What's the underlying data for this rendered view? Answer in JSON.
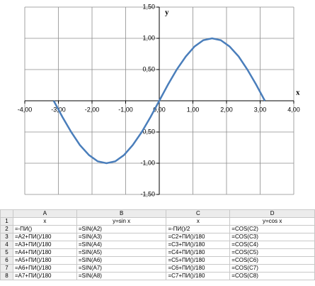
{
  "chart_data": {
    "type": "line",
    "x_label": "x",
    "y_label": "y",
    "x": [
      -3.14,
      -2.88,
      -2.62,
      -2.36,
      -2.09,
      -1.83,
      -1.57,
      -1.31,
      -1.05,
      -0.79,
      -0.52,
      -0.26,
      0,
      0.26,
      0.52,
      0.79,
      1.05,
      1.31,
      1.57,
      1.83,
      2.09,
      2.36,
      2.62,
      2.88,
      3.14
    ],
    "series": [
      {
        "color": "#4a7ebb",
        "values": [
          0,
          -0.26,
          -0.5,
          -0.71,
          -0.87,
          -0.97,
          -1,
          -0.97,
          -0.87,
          -0.71,
          -0.5,
          -0.26,
          0,
          0.26,
          0.5,
          0.71,
          0.87,
          0.97,
          1,
          0.97,
          0.87,
          0.71,
          0.5,
          0.26,
          0
        ]
      }
    ],
    "xlim": [
      -4,
      4
    ],
    "xticks": [
      {
        "value": -4,
        "label": "-4,00"
      },
      {
        "value": -3,
        "label": "-3,00"
      },
      {
        "value": -2,
        "label": "-2,00"
      },
      {
        "value": -1,
        "label": "-1,00"
      },
      {
        "value": 0,
        "label": "0,00"
      },
      {
        "value": 1,
        "label": "1,00"
      },
      {
        "value": 2,
        "label": "2,00"
      },
      {
        "value": 3,
        "label": "3,00"
      },
      {
        "value": 4,
        "label": "4,00"
      }
    ],
    "ylim": [
      -1.5,
      1.5
    ],
    "yticks": [
      {
        "value": -1.5,
        "label": "-1,50"
      },
      {
        "value": -1,
        "label": "-1,00"
      },
      {
        "value": -0.5,
        "label": "-0,50"
      },
      {
        "value": 0.5,
        "label": "0,50"
      },
      {
        "value": 1,
        "label": "1,00"
      },
      {
        "value": 1.5,
        "label": "1,50"
      }
    ],
    "grid": true
  },
  "table": {
    "columns": [
      "A",
      "B",
      "C",
      "D"
    ],
    "rows": [
      [
        "1",
        "x",
        "y=sin x",
        "x",
        "y=cos x"
      ],
      [
        "2",
        "=-ПИ()",
        "=SIN(A2)",
        "=-ПИ()/2",
        "=COS(C2)"
      ],
      [
        "3",
        "=A2+ПИ()/180",
        "=SIN(A3)",
        "=C2+ПИ()/180",
        "=COS(C3)"
      ],
      [
        "4",
        "=A3+ПИ()/180",
        "=SIN(A4)",
        "=C3+ПИ()/180",
        "=COS(C4)"
      ],
      [
        "5",
        "=A4+ПИ()/180",
        "=SIN(A5)",
        "=C4+ПИ()/180",
        "=COS(C5)"
      ],
      [
        "6",
        "=A5+ПИ()/180",
        "=SIN(A6)",
        "=C5+ПИ()/180",
        "=COS(C6)"
      ],
      [
        "7",
        "=A6+ПИ()/180",
        "=SIN(A7)",
        "=C6+ПИ()/180",
        "=COS(C7)"
      ],
      [
        "8",
        "=A7+ПИ()/180",
        "=SIN(A8)",
        "=C7+ПИ()/180",
        "=COS(C8)"
      ]
    ]
  }
}
